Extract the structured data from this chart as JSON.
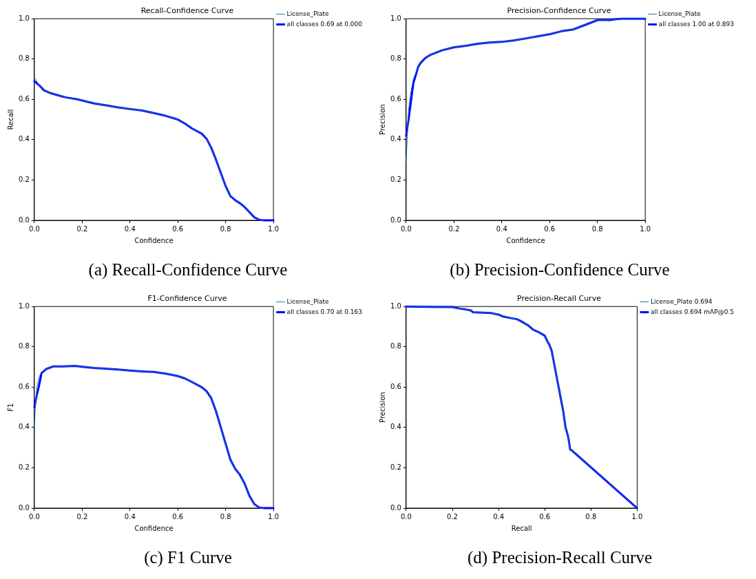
{
  "chart_data": [
    {
      "type": "line",
      "title": "Recall-Confidence Curve",
      "xlabel": "Confidence",
      "ylabel": "Recall",
      "annotations": [
        "(a) Recall-Confidence Curve"
      ],
      "legend": "top right",
      "grid": false,
      "marker": "none",
      "line_style": "solid",
      "x": [
        0,
        0.02,
        0.04,
        0.07,
        0.1,
        0.13,
        0.18,
        0.25,
        0.3,
        0.35,
        0.4,
        0.45,
        0.5,
        0.55,
        0.6,
        0.63,
        0.66,
        0.7,
        0.72,
        0.74,
        0.76,
        0.78,
        0.8,
        0.82,
        0.84,
        0.86,
        0.88,
        0.9,
        0.92,
        0.94,
        0.96,
        1.0
      ],
      "series": [
        {
          "name": "License_Plate",
          "color": "#1f77b4",
          "values": [
            0.71,
            0.67,
            0.645,
            0.63,
            0.62,
            0.61,
            0.6,
            0.58,
            0.57,
            0.56,
            0.552,
            0.545,
            0.532,
            0.518,
            0.5,
            0.48,
            0.455,
            0.43,
            0.405,
            0.36,
            0.3,
            0.235,
            0.17,
            0.12,
            0.1,
            0.085,
            0.065,
            0.04,
            0.015,
            0.003,
            0,
            null
          ]
        },
        {
          "name": "all classes 0.69 at 0.000",
          "color": "#0000ff",
          "values": [
            0.69,
            0.67,
            0.645,
            0.63,
            0.62,
            0.61,
            0.6,
            0.58,
            0.57,
            0.56,
            0.552,
            0.545,
            0.532,
            0.518,
            0.5,
            0.48,
            0.455,
            0.43,
            0.405,
            0.36,
            0.3,
            0.235,
            0.17,
            0.12,
            0.1,
            0.085,
            0.065,
            0.04,
            0.015,
            0.003,
            0,
            0
          ]
        }
      ],
      "xlim": [
        0,
        1
      ],
      "ylim": [
        0,
        1
      ],
      "xticks": [
        {
          "value": 0,
          "label": "0.0"
        },
        {
          "value": 0.2,
          "label": "0.2"
        },
        {
          "value": 0.4,
          "label": "0.4"
        },
        {
          "value": 0.6,
          "label": "0.6"
        },
        {
          "value": 0.8,
          "label": "0.8"
        },
        {
          "value": 1,
          "label": "1.0"
        }
      ],
      "yticks": [
        {
          "value": 0,
          "label": "0.0"
        },
        {
          "value": 0.2,
          "label": "0.2"
        },
        {
          "value": 0.4,
          "label": "0.4"
        },
        {
          "value": 0.6,
          "label": "0.6"
        },
        {
          "value": 0.8,
          "label": "0.8"
        },
        {
          "value": 1,
          "label": "1.0"
        }
      ]
    },
    {
      "type": "line",
      "title": "Precision-Confidence Curve",
      "xlabel": "Confidence",
      "ylabel": "Precision",
      "annotations": [
        "(b) Precision-Confidence Curve"
      ],
      "legend": "top right",
      "grid": false,
      "marker": "none",
      "line_style": "solid",
      "x": [
        0,
        0.01,
        0.02,
        0.03,
        0.04,
        0.05,
        0.06,
        0.08,
        0.1,
        0.15,
        0.2,
        0.25,
        0.3,
        0.35,
        0.4,
        0.45,
        0.5,
        0.55,
        0.6,
        0.65,
        0.7,
        0.75,
        0.8,
        0.82,
        0.85,
        0.88,
        0.9,
        1.0
      ],
      "series": [
        {
          "name": "License_Plate",
          "color": "#1f77b4",
          "values": [
            0.29,
            0.55,
            0.64,
            0.7,
            0.73,
            0.76,
            0.78,
            0.805,
            0.82,
            0.843,
            0.858,
            0.866,
            0.876,
            0.882,
            0.885,
            0.892,
            0.902,
            0.913,
            0.923,
            0.938,
            0.947,
            0.97,
            0.993,
            0.995,
            0.993,
            0.998,
            1,
            1
          ]
        },
        {
          "name": "all classes 1.00 at 0.893",
          "color": "#0000ff",
          "values": [
            0.42,
            0.5,
            0.59,
            0.68,
            0.72,
            0.76,
            0.78,
            0.805,
            0.82,
            0.843,
            0.858,
            0.866,
            0.876,
            0.882,
            0.885,
            0.892,
            0.902,
            0.913,
            0.923,
            0.938,
            0.947,
            0.97,
            0.993,
            0.995,
            0.993,
            0.998,
            1,
            1
          ]
        }
      ],
      "xlim": [
        0,
        1
      ],
      "ylim": [
        0,
        1
      ],
      "xticks": [
        {
          "value": 0,
          "label": "0.0"
        },
        {
          "value": 0.2,
          "label": "0.2"
        },
        {
          "value": 0.4,
          "label": "0.4"
        },
        {
          "value": 0.6,
          "label": "0.6"
        },
        {
          "value": 0.8,
          "label": "0.8"
        },
        {
          "value": 1,
          "label": "1.0"
        }
      ],
      "yticks": [
        {
          "value": 0,
          "label": "0.0"
        },
        {
          "value": 0.2,
          "label": "0.2"
        },
        {
          "value": 0.4,
          "label": "0.4"
        },
        {
          "value": 0.6,
          "label": "0.6"
        },
        {
          "value": 0.8,
          "label": "0.8"
        },
        {
          "value": 1,
          "label": "1.0"
        }
      ]
    },
    {
      "type": "line",
      "title": "F1-Confidence Curve",
      "xlabel": "Confidence",
      "ylabel": "F1",
      "annotations": [
        "(c) F1 Curve"
      ],
      "legend": "top right",
      "grid": false,
      "marker": "none",
      "line_style": "solid",
      "x": [
        0,
        0.01,
        0.02,
        0.03,
        0.05,
        0.08,
        0.12,
        0.17,
        0.2,
        0.25,
        0.3,
        0.35,
        0.4,
        0.45,
        0.5,
        0.55,
        0.6,
        0.63,
        0.66,
        0.7,
        0.72,
        0.74,
        0.76,
        0.78,
        0.8,
        0.82,
        0.84,
        0.86,
        0.88,
        0.9,
        0.92,
        0.94,
        0.96,
        1.0
      ],
      "series": [
        {
          "name": "License_Plate",
          "color": "#1f77b4",
          "values": [
            0.41,
            0.6,
            0.65,
            0.675,
            0.69,
            0.703,
            0.703,
            0.705,
            0.701,
            0.695,
            0.692,
            0.687,
            0.682,
            0.678,
            0.675,
            0.667,
            0.655,
            0.643,
            0.625,
            0.6,
            0.58,
            0.545,
            0.48,
            0.4,
            0.32,
            0.24,
            0.195,
            0.165,
            0.12,
            0.06,
            0.02,
            0.003,
            0,
            null
          ]
        },
        {
          "name": "all classes 0.70 at 0.163",
          "color": "#0000ff",
          "values": [
            0.5,
            0.56,
            0.61,
            0.67,
            0.69,
            0.703,
            0.703,
            0.705,
            0.701,
            0.695,
            0.692,
            0.687,
            0.682,
            0.678,
            0.675,
            0.667,
            0.655,
            0.643,
            0.625,
            0.6,
            0.58,
            0.545,
            0.48,
            0.4,
            0.32,
            0.24,
            0.195,
            0.165,
            0.12,
            0.06,
            0.02,
            0.003,
            0,
            0
          ]
        }
      ],
      "xlim": [
        0,
        1
      ],
      "ylim": [
        0,
        1
      ],
      "xticks": [
        {
          "value": 0,
          "label": "0.0"
        },
        {
          "value": 0.2,
          "label": "0.2"
        },
        {
          "value": 0.4,
          "label": "0.4"
        },
        {
          "value": 0.6,
          "label": "0.6"
        },
        {
          "value": 0.8,
          "label": "0.8"
        },
        {
          "value": 1,
          "label": "1.0"
        }
      ],
      "yticks": [
        {
          "value": 0,
          "label": "0.0"
        },
        {
          "value": 0.2,
          "label": "0.2"
        },
        {
          "value": 0.4,
          "label": "0.4"
        },
        {
          "value": 0.6,
          "label": "0.6"
        },
        {
          "value": 0.8,
          "label": "0.8"
        },
        {
          "value": 1,
          "label": "1.0"
        }
      ]
    },
    {
      "type": "line",
      "title": "Precision-Recall Curve",
      "xlabel": "Recall",
      "ylabel": "Precision",
      "annotations": [
        "(d) Precision-Recall Curve"
      ],
      "legend": "top right",
      "grid": false,
      "marker": "none",
      "line_style": "solid",
      "x": [
        0,
        0.1,
        0.2,
        0.23,
        0.26,
        0.28,
        0.29,
        0.32,
        0.37,
        0.4,
        0.42,
        0.45,
        0.48,
        0.5,
        0.53,
        0.55,
        0.57,
        0.6,
        0.61,
        0.62,
        0.63,
        0.64,
        0.65,
        0.66,
        0.67,
        0.68,
        0.69,
        0.7,
        0.705,
        0.71,
        0.715,
        1.0
      ],
      "series": [
        {
          "name": "License_Plate 0.694",
          "color": "#1f77b4",
          "values": [
            1,
            0.998,
            0.997,
            0.99,
            0.985,
            0.98,
            0.972,
            0.97,
            0.967,
            0.96,
            0.95,
            0.943,
            0.937,
            0.925,
            0.905,
            0.885,
            0.875,
            0.855,
            0.83,
            0.81,
            0.78,
            0.72,
            0.66,
            0.6,
            0.54,
            0.48,
            0.4,
            0.36,
            0.33,
            0.29,
            0.288,
            0
          ]
        },
        {
          "name": "all classes 0.694 mAP@0.5",
          "color": "#0000ff",
          "values": [
            1,
            0.998,
            0.997,
            0.99,
            0.985,
            0.98,
            0.972,
            0.97,
            0.967,
            0.96,
            0.95,
            0.943,
            0.937,
            0.925,
            0.905,
            0.885,
            0.875,
            0.855,
            0.83,
            0.81,
            0.78,
            0.72,
            0.66,
            0.6,
            0.54,
            0.48,
            0.4,
            0.36,
            0.33,
            0.29,
            0.288,
            0
          ]
        }
      ],
      "xlim": [
        0,
        1
      ],
      "ylim": [
        0,
        1
      ],
      "xticks": [
        {
          "value": 0,
          "label": "0.0"
        },
        {
          "value": 0.2,
          "label": "0.2"
        },
        {
          "value": 0.4,
          "label": "0.4"
        },
        {
          "value": 0.6,
          "label": "0.6"
        },
        {
          "value": 0.8,
          "label": "0.8"
        },
        {
          "value": 1,
          "label": "1.0"
        }
      ],
      "yticks": [
        {
          "value": 0,
          "label": "0.0"
        },
        {
          "value": 0.2,
          "label": "0.2"
        },
        {
          "value": 0.4,
          "label": "0.4"
        },
        {
          "value": 0.6,
          "label": "0.6"
        },
        {
          "value": 0.8,
          "label": "0.8"
        },
        {
          "value": 1,
          "label": "1.0"
        }
      ]
    }
  ]
}
